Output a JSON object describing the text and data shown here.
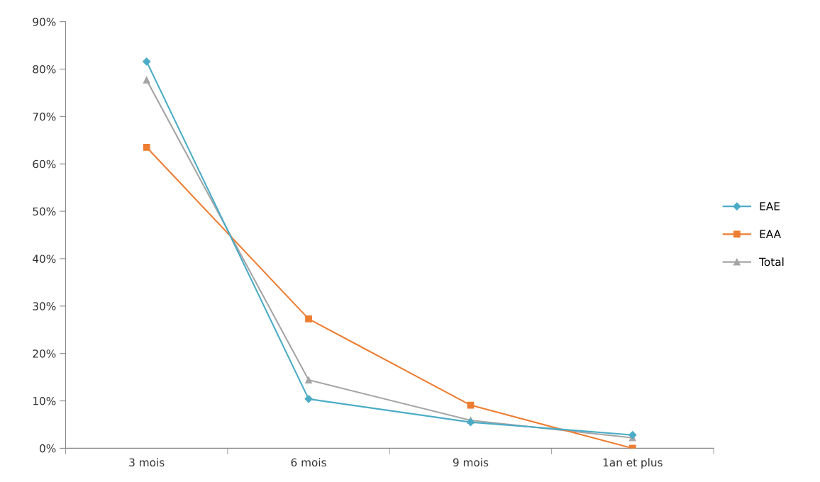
{
  "chart_data": {
    "type": "line",
    "categories": [
      "3 mois",
      "6 mois",
      "9 mois",
      "1an et plus"
    ],
    "series": [
      {
        "name": "EAE",
        "color": "#4bacc6",
        "marker": "diamond",
        "values": [
          81.6,
          10.4,
          5.5,
          2.8
        ]
      },
      {
        "name": "EAA",
        "color": "#ed7d31",
        "marker": "square",
        "values": [
          63.5,
          27.3,
          9.1,
          0
        ]
      },
      {
        "name": "Total",
        "color": "#a5a5a5",
        "marker": "triangle",
        "values": [
          77.7,
          14.4,
          5.9,
          2.2
        ]
      }
    ],
    "ylim": [
      0,
      90
    ],
    "yticks": [
      {
        "value": 0,
        "label": "0%"
      },
      {
        "value": 10,
        "label": "10%"
      },
      {
        "value": 20,
        "label": "20%"
      },
      {
        "value": 30,
        "label": "30%"
      },
      {
        "value": 40,
        "label": "40%"
      },
      {
        "value": 50,
        "label": "50%"
      },
      {
        "value": 60,
        "label": "60%"
      },
      {
        "value": 70,
        "label": "70%"
      },
      {
        "value": 80,
        "label": "80%"
      },
      {
        "value": 90,
        "label": "90%"
      }
    ],
    "grid": false,
    "legend": "right"
  }
}
